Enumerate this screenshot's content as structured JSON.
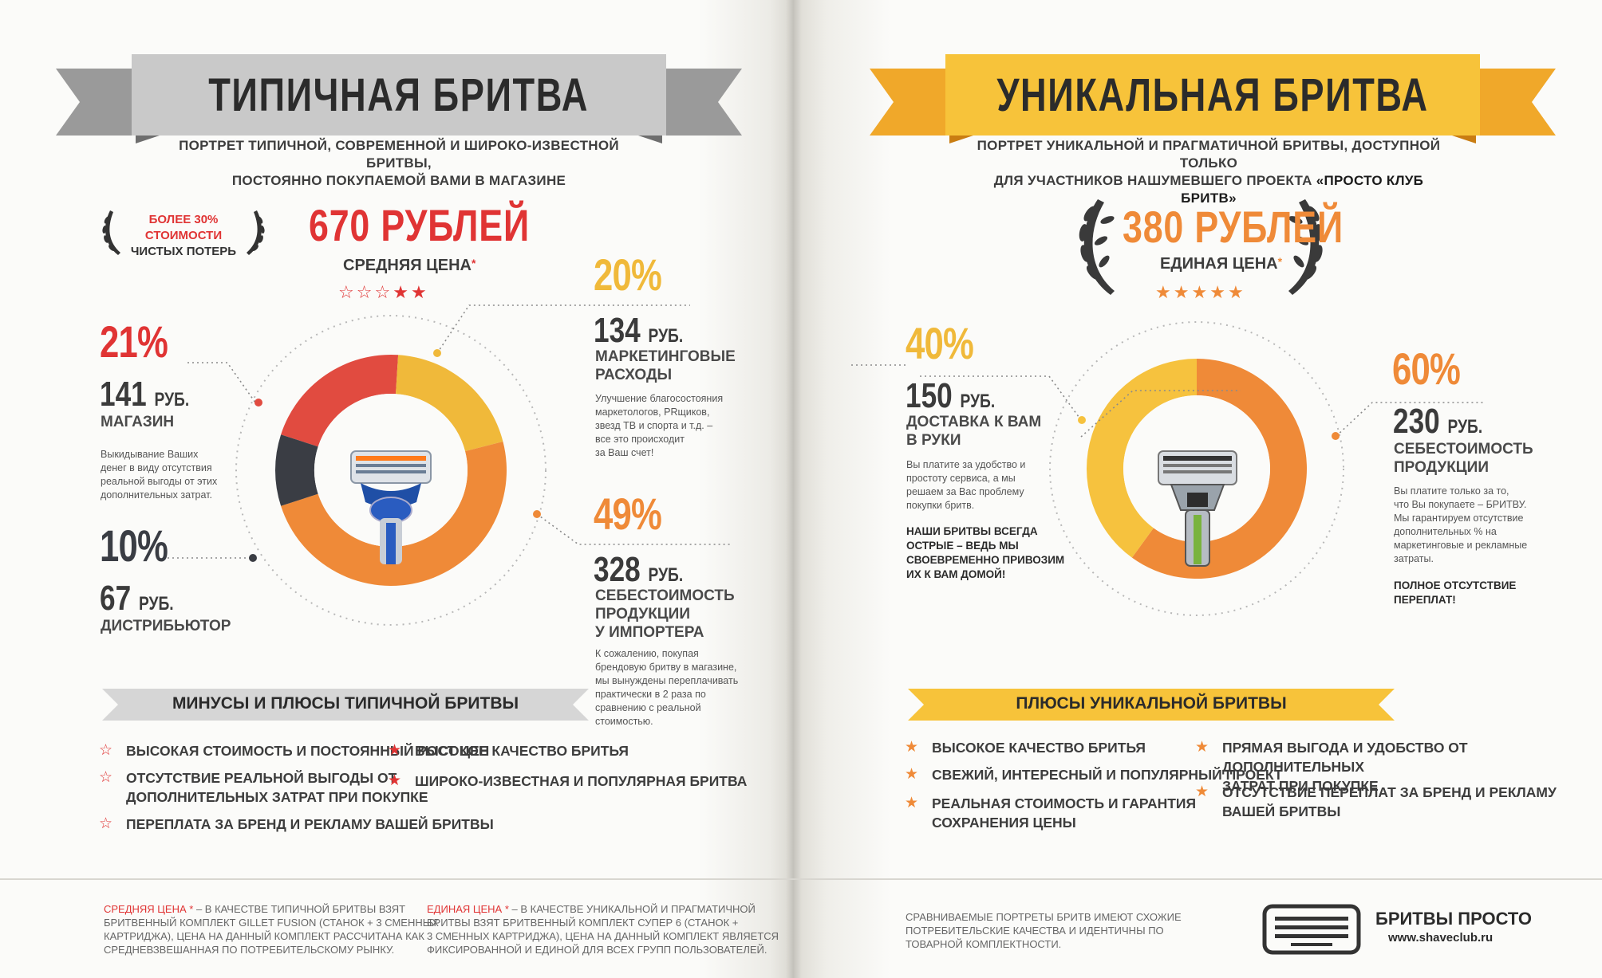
{
  "left": {
    "title": "ТИПИЧНАЯ БРИТВА",
    "subtitle_l1": "ПОРТРЕТ ТИПИЧНОЙ, СОВРЕМЕННОЙ И ШИРОКО-ИЗВЕСТНОЙ БРИТВЫ,",
    "subtitle_l2": "ПОСТОЯННО ПОКУПАЕМОЙ ВАМИ В МАГАЗИНЕ",
    "laurel_l1": "БОЛЕЕ 30% СТОИМОСТИ",
    "laurel_l2": "ЧИСТЫХ ПОТЕРЬ",
    "price": "670 РУБЛЕЙ",
    "price_label": "СРЕДНЯЯ ЦЕНА",
    "asterisk": "*",
    "rating": 2,
    "rating_max": 5,
    "seg_shop": {
      "pct": "21%",
      "num": "141",
      "unit": "РУБ.",
      "label": "МАГАЗИН",
      "desc": [
        "Выкидывание Ваших",
        "денег в виду отсутствия",
        "реальной выгоды от этих",
        "дополнительных затрат."
      ]
    },
    "seg_distr": {
      "pct": "10%",
      "num": "67",
      "unit": "РУБ.",
      "label": "ДИСТРИБЬЮТОР"
    },
    "seg_marketing": {
      "pct": "20%",
      "num": "134",
      "unit": "РУБ.",
      "label_l1": "МАРКЕТИНГОВЫЕ",
      "label_l2": "РАСХОДЫ",
      "desc": [
        "Улучшение благосостояния",
        "маркетологов, PRщиков,",
        "звезд ТВ и спорта и т.д. –",
        "все это происходит",
        "за Ваш счет!"
      ]
    },
    "seg_cost": {
      "pct": "49%",
      "num": "328",
      "unit": "РУБ.",
      "label_l1": "СЕБЕСТОИМОСТЬ",
      "label_l2": "ПРОДУКЦИИ",
      "label_l3": "У ИМПОРТЕРА",
      "desc": [
        "К сожалению, покупая",
        "брендовую бритву в магазине,",
        "мы вынуждены переплачивать",
        "практически в 2 раза по",
        "сравнению с реальной",
        "стоимостью."
      ]
    },
    "list_title": "МИНУСЫ И ПЛЮСЫ ТИПИЧНОЙ БРИТВЫ",
    "minus_1": "ВЫСОКАЯ СТОИМОСТЬ И ПОСТОЯННЫЙ РОСТ ЦЕН",
    "minus_2_l1": "ОТСУТСТВИЕ РЕАЛЬНОЙ ВЫГОДЫ ОТ",
    "minus_2_l2": "ДОПОЛНИТЕЛЬНЫХ ЗАТРАТ ПРИ ПОКУПКЕ",
    "minus_3": "ПЕРЕПЛАТА ЗА БРЕНД И РЕКЛАМУ ВАШЕЙ БРИТВЫ",
    "plus_1": "ВЫСОКОЕ КАЧЕСТВО БРИТЬЯ",
    "plus_2": "ШИРОКО-ИЗВЕСТНАЯ И ПОПУЛЯРНАЯ БРИТВА",
    "colors": {
      "red": "#e14b40",
      "yellow": "#f0b93a",
      "orange": "#ef8a38",
      "dark": "#3a3d44",
      "title_ribbon": "#c9c9c9"
    }
  },
  "right": {
    "title": "УНИКАЛЬНАЯ БРИТВА",
    "subtitle_l1": "ПОРТРЕТ УНИКАЛЬНОЙ И ПРАГМАТИЧНОЙ БРИТВЫ, ДОСТУПНОЙ ТОЛЬКО",
    "subtitle_l2a": "ДЛЯ УЧАСТНИКОВ НАШУМЕВШЕГО ПРОЕКТА ",
    "subtitle_l2b": "«ПРОСТО КЛУБ БРИТВ»",
    "price": "380 РУБЛЕЙ",
    "price_label": "ЕДИНАЯ ЦЕНА",
    "asterisk": "*",
    "rating": 5,
    "rating_max": 5,
    "seg_delivery": {
      "pct": "40%",
      "num": "150",
      "unit": "РУБ.",
      "label_l1": "ДОСТАВКА К ВАМ",
      "label_l2": "В РУКИ",
      "desc": [
        "Вы платите за удобство и",
        "простоту сервиса, а мы",
        "решаем за Вас проблему",
        "покупки бритв."
      ],
      "bold": [
        "НАШИ БРИТВЫ ВСЕГДА",
        "ОСТРЫЕ – ВЕДЬ МЫ",
        "СВОЕВРЕМЕННО ПРИВОЗИМ",
        "ИХ К ВАМ ДОМОЙ!"
      ]
    },
    "seg_cost": {
      "pct": "60%",
      "num": "230",
      "unit": "РУБ.",
      "label_l1": "СЕБЕСТОИМОСТЬ",
      "label_l2": "ПРОДУКЦИИ",
      "desc": [
        "Вы платите только за то,",
        "что Вы покупаете – БРИТВУ.",
        "Мы гарантируем отсутствие",
        "дополнительных % на",
        "маркетинговые и рекламные",
        "затраты."
      ],
      "bold": [
        "ПОЛНОЕ ОТСУТСТВИЕ",
        "ПЕРЕПЛАТ!"
      ]
    },
    "list_title": "ПЛЮСЫ УНИКАЛЬНОЙ БРИТВЫ",
    "plus_1": "ВЫСОКОЕ КАЧЕСТВО БРИТЬЯ",
    "plus_2": "СВЕЖИЙ, ИНТЕРЕСНЫЙ И ПОПУЛЯРНЫЙ ПРОЕКТ",
    "plus_3_l1": "РЕАЛЬНАЯ СТОИМОСТЬ И ГАРАНТИЯ",
    "plus_3_l2": "СОХРАНЕНИЯ ЦЕНЫ",
    "plus_4_l1": "ПРЯМАЯ ВЫГОДА И УДОБСТВО ОТ ДОПОЛНИТЕЛЬНЫХ",
    "plus_4_l2": "ЗАТРАТ ПРИ ПОКУПКЕ",
    "plus_5_l1": "ОТСУТСТВИЕ ПЕРЕПЛАТ ЗА БРЕНД И РЕКЛАМУ",
    "plus_5_l2": "ВАШЕЙ БРИТВЫ",
    "colors": {
      "yellow": "#f6c23e",
      "orange": "#ef8a38",
      "title_ribbon": "#f7c33a"
    }
  },
  "footer": {
    "note1_head": "СРЕДНЯЯ ЦЕНА *",
    "note1_l1": " – В КАЧЕСТВЕ ТИПИЧНОЙ БРИТВЫ ВЗЯТ",
    "note1_l2": "БРИТВЕННЫЙ КОМПЛЕКТ GILLET FUSION (СТАНОК + 3 СМЕННЫХ",
    "note1_l3": "КАРТРИДЖА), ЦЕНА НА ДАННЫЙ КОМПЛЕКТ РАССЧИТАНА КАК",
    "note1_l4": "СРЕДНЕВЗВЕШАННАЯ ПО ПОТРЕБИТЕЛЬСКОМУ РЫНКУ.",
    "note2_head": "ЕДИНАЯ ЦЕНА *",
    "note2_l1": " – В КАЧЕСТВЕ УНИКАЛЬНОЙ И ПРАГМАТИЧНОЙ",
    "note2_l2": "БРИТВЫ ВЗЯТ БРИТВЕННЫЙ КОМПЛЕКТ СУПЕР 6 (СТАНОК +",
    "note2_l3": "3 СМЕННЫХ КАРТРИДЖА), ЦЕНА НА ДАННЫЙ КОМПЛЕКТ ЯВЛЯЕТСЯ",
    "note2_l4": "ФИКСИРОВАННОЙ И ЕДИНОЙ ДЛЯ ВСЕХ ГРУПП ПОЛЬЗОВАТЕЛЕЙ.",
    "note3_l1": "СРАВНИВАЕМЫЕ ПОРТРЕТЫ БРИТВ ИМЕЮТ СХОЖИЕ",
    "note3_l2": "ПОТРЕБИТЕЛЬСКИЕ КАЧЕСТВА И ИДЕНТИЧНЫ ПО",
    "note3_l3": "ТОВАРНОЙ КОМПЛЕКТНОСТИ.",
    "brand": "БРИТВЫ ПРОСТО",
    "site": "www.shaveclub.ru"
  }
}
